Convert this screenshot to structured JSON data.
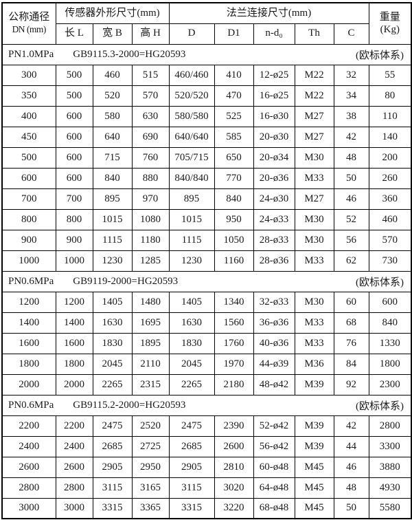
{
  "header": {
    "dn": {
      "line1": "公称通径",
      "line2": "DN (mm)"
    },
    "sensor_group": "传感器外形尺寸(mm)",
    "flange_group": "法兰连接尺寸(mm)",
    "weight": {
      "line1": "重量",
      "line2": "(Kg)"
    },
    "sub_columns": [
      "长 L",
      "宽 B",
      "高 H",
      "D",
      "D1",
      "n-d₀",
      "Th",
      "C"
    ]
  },
  "columns_order": [
    "DN",
    "L",
    "B",
    "H",
    "D",
    "D1",
    "n-d0",
    "Th",
    "C",
    "Kg"
  ],
  "sections": [
    {
      "pressure": "PN1.0MPa",
      "standard": "GB9115.3-2000=HG20593",
      "note": "(欧标体系)",
      "rows": [
        [
          "300",
          "500",
          "460",
          "515",
          "460/460",
          "410",
          "12-ø25",
          "M22",
          "32",
          "55"
        ],
        [
          "350",
          "500",
          "520",
          "570",
          "520/520",
          "470",
          "16-ø25",
          "M22",
          "34",
          "80"
        ],
        [
          "400",
          "600",
          "580",
          "630",
          "580/580",
          "525",
          "16-ø30",
          "M27",
          "38",
          "110"
        ],
        [
          "450",
          "600",
          "640",
          "690",
          "640/640",
          "585",
          "20-ø30",
          "M27",
          "42",
          "140"
        ],
        [
          "500",
          "600",
          "715",
          "760",
          "705/715",
          "650",
          "20-ø34",
          "M30",
          "48",
          "200"
        ],
        [
          "600",
          "600",
          "840",
          "880",
          "840/840",
          "770",
          "20-ø36",
          "M33",
          "50",
          "260"
        ],
        [
          "700",
          "700",
          "895",
          "970",
          "895",
          "840",
          "24-ø30",
          "M27",
          "46",
          "360"
        ],
        [
          "800",
          "800",
          "1015",
          "1080",
          "1015",
          "950",
          "24-ø33",
          "M30",
          "52",
          "460"
        ],
        [
          "900",
          "900",
          "1115",
          "1180",
          "1115",
          "1050",
          "28-ø33",
          "M30",
          "56",
          "570"
        ],
        [
          "1000",
          "1000",
          "1230",
          "1285",
          "1230",
          "1160",
          "28-ø36",
          "M33",
          "62",
          "730"
        ]
      ]
    },
    {
      "pressure": "PN0.6MPa",
      "standard": "GB9119-2000=HG20593",
      "note": "(欧标体系)",
      "rows": [
        [
          "1200",
          "1200",
          "1405",
          "1480",
          "1405",
          "1340",
          "32-ø33",
          "M30",
          "60",
          "600"
        ],
        [
          "1400",
          "1400",
          "1630",
          "1695",
          "1630",
          "1560",
          "36-ø36",
          "M33",
          "68",
          "840"
        ],
        [
          "1600",
          "1600",
          "1830",
          "1895",
          "1830",
          "1760",
          "40-ø36",
          "M33",
          "76",
          "1330"
        ],
        [
          "1800",
          "1800",
          "2045",
          "2110",
          "2045",
          "1970",
          "44-ø39",
          "M36",
          "84",
          "1800"
        ],
        [
          "2000",
          "2000",
          "2265",
          "2315",
          "2265",
          "2180",
          "48-ø42",
          "M39",
          "92",
          "2300"
        ]
      ]
    },
    {
      "pressure": "PN0.6MPa",
      "standard": "GB9115.2-2000=HG20593",
      "note": "(欧标体系)",
      "rows": [
        [
          "2200",
          "2200",
          "2475",
          "2520",
          "2475",
          "2390",
          "52-ø42",
          "M39",
          "42",
          "2800"
        ],
        [
          "2400",
          "2400",
          "2685",
          "2725",
          "2685",
          "2600",
          "56-ø42",
          "M39",
          "44",
          "3300"
        ],
        [
          "2600",
          "2600",
          "2905",
          "2950",
          "2905",
          "2810",
          "60-ø48",
          "M45",
          "46",
          "3880"
        ],
        [
          "2800",
          "2800",
          "3115",
          "3165",
          "3115",
          "3020",
          "64-ø48",
          "M45",
          "48",
          "4930"
        ],
        [
          "3000",
          "3000",
          "3315",
          "3365",
          "3315",
          "3220",
          "68-ø48",
          "M45",
          "50",
          "5580"
        ]
      ]
    }
  ]
}
